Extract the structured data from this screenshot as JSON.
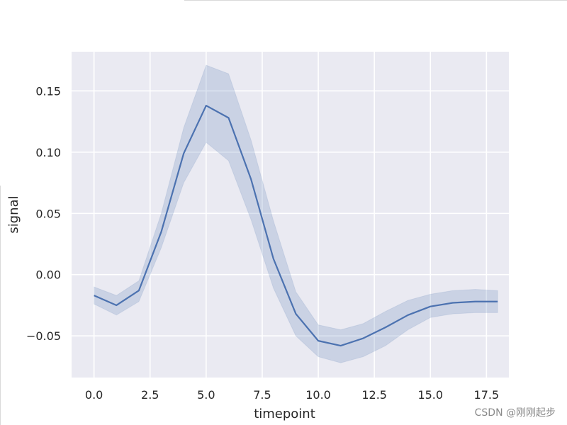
{
  "chart_data": {
    "type": "line",
    "title": "",
    "xlabel": "timepoint",
    "ylabel": "signal",
    "xlim": [
      -1.0,
      18.5
    ],
    "ylim": [
      -0.084,
      0.182
    ],
    "xticks": [
      0.0,
      2.5,
      5.0,
      7.5,
      10.0,
      12.5,
      15.0,
      17.5
    ],
    "xtick_labels": [
      "0.0",
      "2.5",
      "5.0",
      "7.5",
      "10.0",
      "12.5",
      "15.0",
      "17.5"
    ],
    "yticks": [
      -0.05,
      0.0,
      0.05,
      0.1,
      0.15
    ],
    "ytick_labels": [
      "−0.05",
      "0.00",
      "0.05",
      "0.10",
      "0.15"
    ],
    "grid": true,
    "background_color": "#EAEAF2",
    "line_color": "#4C72B0",
    "band_color": "#4C72B0",
    "series": [
      {
        "x": [
          0,
          1,
          2,
          3,
          4,
          5,
          6,
          7,
          8,
          9,
          10,
          11,
          12,
          13,
          14,
          15,
          16,
          17,
          18
        ],
        "values": [
          -0.017,
          -0.025,
          -0.013,
          0.035,
          0.099,
          0.138,
          0.128,
          0.078,
          0.013,
          -0.032,
          -0.054,
          -0.058,
          -0.052,
          -0.043,
          -0.033,
          -0.026,
          -0.023,
          -0.022,
          -0.022
        ],
        "ci_lower": [
          -0.024,
          -0.033,
          -0.022,
          0.022,
          0.075,
          0.108,
          0.093,
          0.045,
          -0.011,
          -0.05,
          -0.067,
          -0.072,
          -0.067,
          -0.058,
          -0.045,
          -0.035,
          -0.032,
          -0.031,
          -0.031
        ],
        "ci_upper": [
          -0.01,
          -0.017,
          -0.005,
          0.05,
          0.12,
          0.171,
          0.164,
          0.11,
          0.044,
          -0.014,
          -0.041,
          -0.045,
          -0.04,
          -0.03,
          -0.021,
          -0.016,
          -0.013,
          -0.012,
          -0.013
        ]
      }
    ]
  },
  "watermark": "CSDN @刚刚起步"
}
